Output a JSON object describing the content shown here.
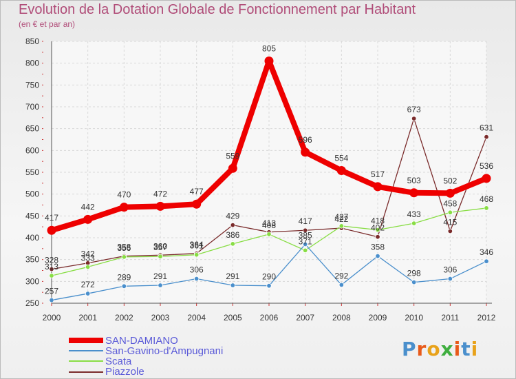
{
  "chart_data": {
    "type": "line",
    "title": "Evolution de la Dotation Globale de Fonctionnement par Habitant",
    "subtitle": "(en € et par an)",
    "categories": [
      "2000",
      "2001",
      "2002",
      "2003",
      "2004",
      "2005",
      "2006",
      "2007",
      "2008",
      "2009",
      "2010",
      "2011",
      "2012"
    ],
    "ylim": [
      250,
      850
    ],
    "yticks": [
      250,
      300,
      350,
      400,
      450,
      500,
      550,
      600,
      650,
      700,
      750,
      800,
      850
    ],
    "series": [
      {
        "name": "SAN-DAMIANO",
        "color": "#ee0000",
        "values": [
          417,
          442,
          470,
          472,
          477,
          559,
          805,
          596,
          554,
          517,
          503,
          502,
          536
        ]
      },
      {
        "name": "San-Gavino-d'Ampugnani",
        "color": "#4a8fcc",
        "values": [
          257,
          272,
          289,
          291,
          306,
          291,
          290,
          385,
          292,
          358,
          298,
          306,
          346
        ]
      },
      {
        "name": "Scata",
        "color": "#88dd44",
        "values": [
          313,
          333,
          356,
          357,
          361,
          386,
          408,
          371,
          427,
          418,
          433,
          458,
          468
        ]
      },
      {
        "name": "Piazzole",
        "color": "#7a2b2b",
        "values": [
          328,
          342,
          358,
          360,
          364,
          429,
          413,
          417,
          422,
          402,
          673,
          415,
          631
        ]
      }
    ]
  },
  "logo": {
    "text": "Proxiti",
    "letter_colors": [
      "#4a8fcc",
      "#e85a1a",
      "#e8a21a",
      "#3fae3f",
      "#e85a1a",
      "#4a8fcc",
      "#e8a21a"
    ]
  }
}
